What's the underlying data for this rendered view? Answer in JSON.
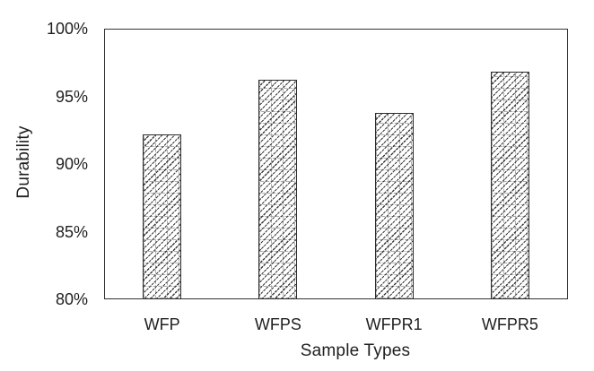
{
  "figure": {
    "background": "#ffffff",
    "axis_color": "#333333",
    "text_color": "#1f1f1f"
  },
  "chart_data": {
    "type": "bar",
    "title": "",
    "xlabel": "Sample Types",
    "ylabel": "Durability",
    "categories": [
      "WFP",
      "WFPS",
      "WFPR1",
      "WFPR5"
    ],
    "values": [
      92.2,
      96.2,
      93.8,
      96.8
    ],
    "unit": "%",
    "ylim": [
      80,
      100
    ],
    "ytick_step": 5,
    "ytick_labels": [
      "80%",
      "85%",
      "90%",
      "95%",
      "100%"
    ],
    "grid": false,
    "legend_position": "none",
    "bar_style": {
      "fill": "#ffffff",
      "hatch": "diagonal-up-dashed",
      "hatch_color": "#3a3a3a",
      "grid_cross_color": "#ababab",
      "border_color": "#2b2b2b"
    }
  }
}
